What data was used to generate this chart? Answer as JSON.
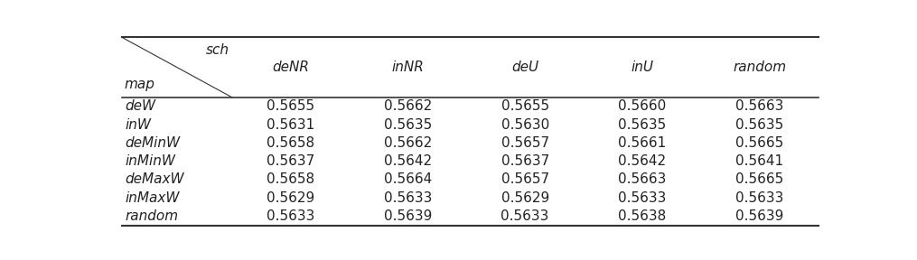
{
  "col_headers": [
    "deNR",
    "inNR",
    "deU",
    "inU",
    "random"
  ],
  "row_headers": [
    "deW",
    "inW",
    "deMinW",
    "inMinW",
    "deMaxW",
    "inMaxW",
    "random"
  ],
  "values": [
    [
      "0.5655",
      "0.5662",
      "0.5655",
      "0.5660",
      "0.5663"
    ],
    [
      "0.5631",
      "0.5635",
      "0.5630",
      "0.5635",
      "0.5635"
    ],
    [
      "0.5658",
      "0.5662",
      "0.5657",
      "0.5661",
      "0.5665"
    ],
    [
      "0.5637",
      "0.5642",
      "0.5637",
      "0.5642",
      "0.5641"
    ],
    [
      "0.5658",
      "0.5664",
      "0.5657",
      "0.5663",
      "0.5665"
    ],
    [
      "0.5629",
      "0.5633",
      "0.5629",
      "0.5633",
      "0.5633"
    ],
    [
      "0.5633",
      "0.5639",
      "0.5633",
      "0.5638",
      "0.5639"
    ]
  ],
  "col_header_label": "sch",
  "row_header_label": "map",
  "background_color": "#ffffff",
  "text_color": "#222222",
  "line_color": "#333333",
  "font_size": 11,
  "header_font_size": 11
}
